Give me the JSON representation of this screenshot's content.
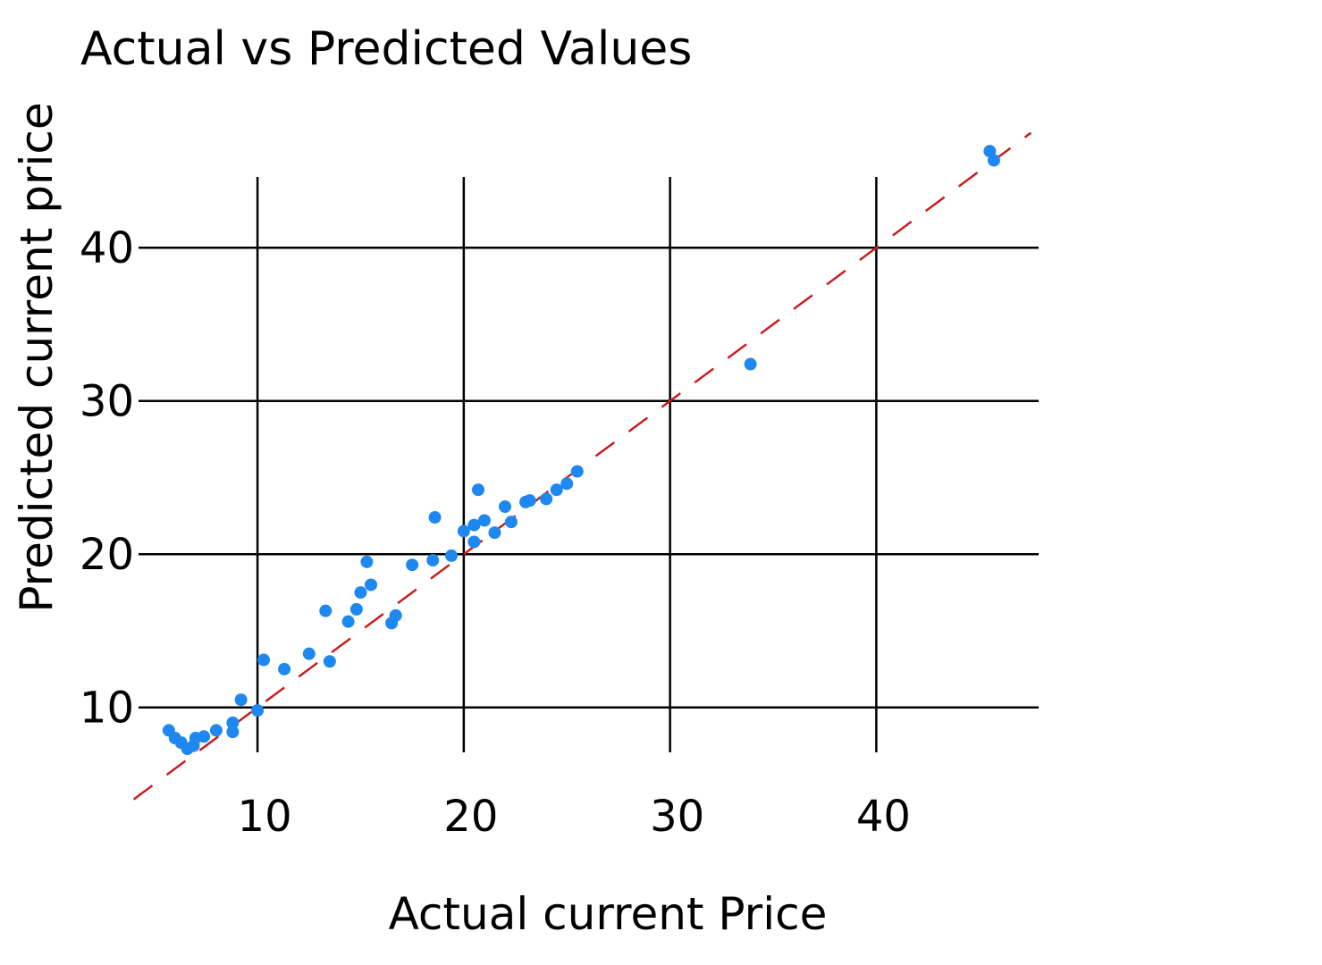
{
  "chart_data": {
    "type": "scatter",
    "title": "Actual vs Predicted Values",
    "xlabel": "Actual current Price",
    "ylabel": "Predicted current price",
    "xlim": [
      2.5,
      48
    ],
    "ylim": [
      6.6,
      48
    ],
    "x_ticks": [
      10,
      20,
      30,
      40
    ],
    "y_ticks": [
      10,
      20,
      30,
      40
    ],
    "grid": true,
    "point_color": "#1e88f0",
    "reference_line": {
      "style": "dashed",
      "color": "#c81e1e",
      "slope": 1,
      "intercept": 0
    },
    "series": [
      {
        "x": [
          5.7,
          6.0,
          6.3,
          6.6,
          6.9,
          7.0,
          7.4,
          8.0,
          8.8,
          8.8,
          9.2,
          10.0,
          10.3,
          11.3,
          12.5,
          13.3,
          13.5,
          14.4,
          14.8,
          15.0,
          15.3,
          15.5,
          16.5,
          16.7,
          17.5,
          18.5,
          18.6,
          19.4,
          20.0,
          20.5,
          20.5,
          20.7,
          21.0,
          21.5,
          22.0,
          22.3,
          23.0,
          23.2,
          24.0,
          24.5,
          25.0,
          25.5,
          33.9,
          45.5,
          45.7
        ],
        "y": [
          8.5,
          8.0,
          7.7,
          7.3,
          7.5,
          8.0,
          8.1,
          8.5,
          9.0,
          8.4,
          10.5,
          9.8,
          13.1,
          12.5,
          13.5,
          16.3,
          13.0,
          15.6,
          16.4,
          17.5,
          19.5,
          18.0,
          15.5,
          16.0,
          19.3,
          19.6,
          22.4,
          19.9,
          21.5,
          21.9,
          20.8,
          24.2,
          22.2,
          21.4,
          23.1,
          22.1,
          23.4,
          23.5,
          23.6,
          24.2,
          24.6,
          25.4,
          32.4,
          46.3,
          45.7
        ]
      }
    ]
  }
}
